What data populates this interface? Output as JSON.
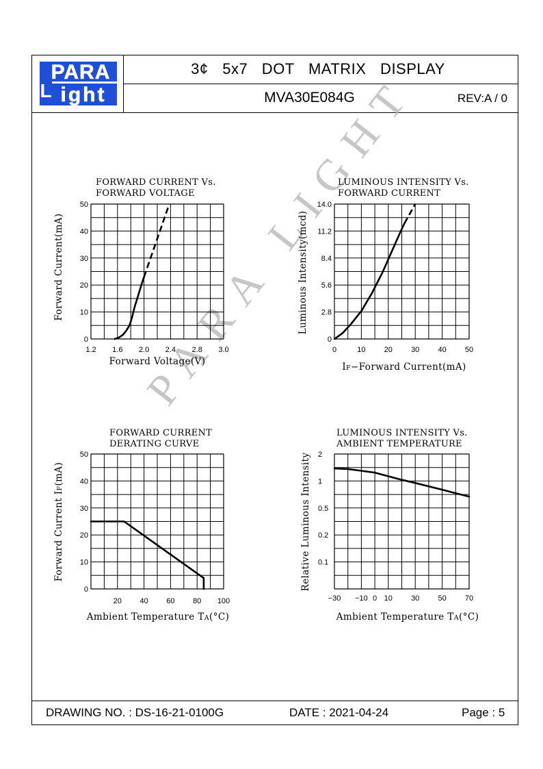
{
  "header": {
    "logo_top": "PARA",
    "logo_bottom": "ight",
    "logo_L": "L",
    "title": "3¢ 5x7 DOT MATRIX DISPLAY",
    "part_number": "MVA30E084G",
    "revision": "REV:A / 0"
  },
  "footer": {
    "drawing_no": "DRAWING NO. : DS-16-21-0100G",
    "date": "DATE : 2021-04-24",
    "page": "Page : 5"
  },
  "watermark": "PARA LIGHT",
  "chart_data": [
    {
      "type": "line",
      "title": "FORWARD CURRENT Vs. FORWARD VOLTAGE",
      "title_lines": [
        "FORWARD CURRENT Vs.",
        "FORWARD VOLTAGE"
      ],
      "xlabel": "Forward Voltage(V)",
      "ylabel": "Forward Current(mA)",
      "xlim": [
        1.2,
        3.2
      ],
      "ylim": [
        0,
        50
      ],
      "x_ticks": [
        "1.2",
        "1.6",
        "2.0",
        "2.4",
        "2.8",
        "3.0"
      ],
      "y_ticks": [
        "0",
        "10",
        "20",
        "30",
        "40",
        "50"
      ],
      "grid": true,
      "series": [
        {
          "style": "solid",
          "x": [
            1.56,
            1.62,
            1.68,
            1.73,
            1.78,
            1.82,
            1.86,
            1.91,
            1.96,
            2.0
          ],
          "y": [
            0,
            0.5,
            1.5,
            3,
            5,
            8,
            12,
            16,
            20,
            23
          ]
        },
        {
          "style": "dashed",
          "x": [
            2.0,
            2.38
          ],
          "y": [
            23,
            50
          ]
        }
      ]
    },
    {
      "type": "line",
      "title": "LUMINOUS INTENSITY Vs. FORWARD CURRENT",
      "title_lines": [
        "LUMINOUS INTENSITY Vs.",
        "FORWARD CURRENT"
      ],
      "xlabel": "IF−Forward Current(mA)",
      "xlabel_parts": [
        "I",
        "F",
        "−Forward Current(mA)"
      ],
      "ylabel": "Luminous Intensity(mcd)",
      "xlim": [
        0,
        50
      ],
      "ylim": [
        0,
        14
      ],
      "x_ticks": [
        "0",
        "10",
        "20",
        "30",
        "40",
        "50"
      ],
      "y_ticks": [
        "0",
        "2.8",
        "5.6",
        "8.4",
        "11.2",
        "14.0"
      ],
      "grid": true,
      "series": [
        {
          "style": "solid",
          "x": [
            0,
            3,
            6,
            10,
            14,
            18,
            21,
            24,
            26
          ],
          "y": [
            0,
            0.6,
            1.5,
            2.9,
            4.8,
            7,
            8.9,
            10.8,
            12
          ]
        },
        {
          "style": "dashed",
          "x": [
            26,
            30
          ],
          "y": [
            12,
            14
          ]
        }
      ]
    },
    {
      "type": "line",
      "title": "FORWARD CURRENT DERATING CURVE",
      "title_lines": [
        "FORWARD CURRENT",
        "DERATING CURVE"
      ],
      "xlabel": "Ambient Temperature TA(°C)",
      "xlabel_parts": [
        "Ambient Temperature T",
        "A",
        "(°C)"
      ],
      "ylabel": "Forward Current IF(mA)",
      "ylabel_parts": [
        "Forward Current I",
        "F",
        "(mA)"
      ],
      "xlim": [
        0,
        100
      ],
      "ylim": [
        0,
        50
      ],
      "x_ticks": [
        "20",
        "40",
        "60",
        "80",
        "100"
      ],
      "y_ticks": [
        "0",
        "10",
        "20",
        "30",
        "40",
        "50"
      ],
      "grid": true,
      "series": [
        {
          "style": "solid",
          "x": [
            0,
            25,
            85,
            85
          ],
          "y": [
            25,
            25,
            4,
            0
          ]
        }
      ]
    },
    {
      "type": "line",
      "title": "LUMINOUS INTENSITY Vs. AMBIENT TEMPERATURE",
      "title_lines": [
        "LUMINOUS INTENSITY Vs.",
        "AMBIENT TEMPERATURE"
      ],
      "xlabel": "Ambient Temperature TA(°C)",
      "xlabel_parts": [
        "Ambient Temperature T",
        "A",
        "(°C)"
      ],
      "ylabel": "Relative Luminous Intensity",
      "xlim": [
        -30,
        70
      ],
      "y_scale": "log",
      "ylim": [
        0.05,
        2
      ],
      "x_ticks": [
        "−30",
        "−10",
        "0",
        "10",
        "30",
        "50",
        "70"
      ],
      "x_tick_values": [
        -30,
        -10,
        0,
        10,
        30,
        50,
        70
      ],
      "y_ticks": [
        "0.1",
        "0.2",
        "0.5",
        "1",
        "2"
      ],
      "y_tick_values": [
        0.1,
        0.2,
        0.5,
        1,
        2
      ],
      "grid": true,
      "series": [
        {
          "style": "solid",
          "x": [
            -30,
            -20,
            -10,
            0,
            10,
            20,
            30,
            40,
            50,
            60,
            70
          ],
          "y": [
            1.38,
            1.36,
            1.3,
            1.24,
            1.13,
            1.03,
            0.95,
            0.87,
            0.8,
            0.73,
            0.67
          ]
        }
      ]
    }
  ]
}
